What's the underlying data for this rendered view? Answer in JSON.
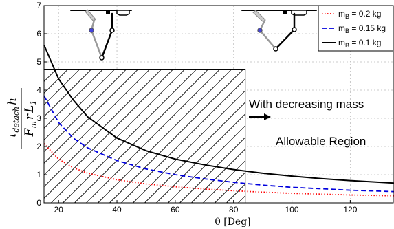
{
  "chart_data": {
    "type": "line",
    "xlabel": "θ [Deg]",
    "ylabel": "τ_detach h / (F_m r L_1)",
    "xlim": [
      15,
      135
    ],
    "ylim": [
      0,
      7
    ],
    "x_ticks": [
      20,
      40,
      60,
      80,
      100,
      120
    ],
    "y_ticks": [
      0,
      1,
      2,
      3,
      4,
      5,
      6,
      7
    ],
    "grid": true,
    "legend_position": "top-right",
    "hatched_region": {
      "x": [
        15,
        84
      ],
      "y": [
        0,
        4.72
      ]
    },
    "annotations": {
      "decreasing_mass": "With decreasing mass",
      "allowable": "Allowable Region"
    },
    "series": [
      {
        "name": "m_B = 0.2 kg",
        "color": "#ff0000",
        "style": "dotted",
        "x": [
          15,
          20,
          25,
          30,
          40,
          50,
          60,
          70,
          80,
          90,
          100,
          110,
          120,
          135
        ],
        "y": [
          2.1,
          1.55,
          1.25,
          1.05,
          0.82,
          0.67,
          0.57,
          0.49,
          0.43,
          0.38,
          0.34,
          0.31,
          0.28,
          0.25
        ]
      },
      {
        "name": "m_B = 0.15 kg",
        "color": "#0000dd",
        "style": "dashed",
        "x": [
          15,
          20,
          25,
          30,
          40,
          50,
          60,
          70,
          80,
          90,
          100,
          110,
          120,
          135
        ],
        "y": [
          3.8,
          2.85,
          2.3,
          1.95,
          1.5,
          1.2,
          1.0,
          0.85,
          0.73,
          0.63,
          0.55,
          0.5,
          0.45,
          0.4
        ]
      },
      {
        "name": "m_B = 0.1 kg",
        "color": "#000000",
        "style": "solid",
        "x": [
          15,
          20,
          25,
          30,
          40,
          50,
          60,
          70,
          80,
          90,
          100,
          110,
          120,
          135
        ],
        "y": [
          5.6,
          4.4,
          3.65,
          3.05,
          2.3,
          1.85,
          1.55,
          1.35,
          1.18,
          1.05,
          0.95,
          0.86,
          0.79,
          0.7
        ]
      }
    ]
  }
}
